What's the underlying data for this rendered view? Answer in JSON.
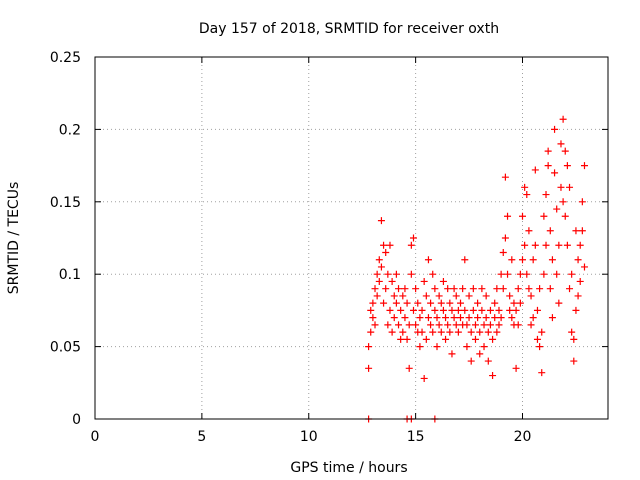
{
  "chart_data": {
    "type": "scatter",
    "title": "Day 157 of 2018, SRMTID for receiver oxth",
    "xlabel": "GPS time / hours",
    "ylabel": "SRMTID / TECUs",
    "xlim": [
      0,
      24
    ],
    "ylim": [
      0,
      0.25
    ],
    "xticks": [
      0,
      5,
      10,
      15,
      20
    ],
    "xtick_labels": [
      "0",
      "5",
      "10",
      "15",
      "20"
    ],
    "yticks": [
      0,
      0.05,
      0.1,
      0.15,
      0.2,
      0.25
    ],
    "ytick_labels": [
      "0",
      "0.05",
      "0.1",
      "0.15",
      "0.2",
      "0.25"
    ],
    "grid": true,
    "legend": "none",
    "marker": "plus",
    "color": "#ff0000",
    "series": [
      {
        "points": [
          [
            12.8,
            0.0
          ],
          [
            14.6,
            0.0
          ],
          [
            14.8,
            0.0
          ],
          [
            15.9,
            0.0
          ],
          [
            12.8,
            0.035
          ],
          [
            12.8,
            0.05
          ],
          [
            12.9,
            0.06
          ],
          [
            12.9,
            0.075
          ],
          [
            13.0,
            0.08
          ],
          [
            13.0,
            0.07
          ],
          [
            13.1,
            0.09
          ],
          [
            13.1,
            0.065
          ],
          [
            13.2,
            0.1
          ],
          [
            13.2,
            0.085
          ],
          [
            13.3,
            0.11
          ],
          [
            13.3,
            0.095
          ],
          [
            13.4,
            0.105
          ],
          [
            13.4,
            0.137
          ],
          [
            13.5,
            0.12
          ],
          [
            13.5,
            0.08
          ],
          [
            13.6,
            0.115
          ],
          [
            13.6,
            0.09
          ],
          [
            13.7,
            0.1
          ],
          [
            13.7,
            0.065
          ],
          [
            13.8,
            0.075
          ],
          [
            13.8,
            0.12
          ],
          [
            13.9,
            0.06
          ],
          [
            13.9,
            0.095
          ],
          [
            14.0,
            0.085
          ],
          [
            14.0,
            0.07
          ],
          [
            14.1,
            0.08
          ],
          [
            14.1,
            0.1
          ],
          [
            14.2,
            0.09
          ],
          [
            14.2,
            0.065
          ],
          [
            14.3,
            0.075
          ],
          [
            14.3,
            0.055
          ],
          [
            14.4,
            0.06
          ],
          [
            14.4,
            0.085
          ],
          [
            14.5,
            0.09
          ],
          [
            14.5,
            0.07
          ],
          [
            14.6,
            0.08
          ],
          [
            14.6,
            0.055
          ],
          [
            14.7,
            0.065
          ],
          [
            14.7,
            0.035
          ],
          [
            14.8,
            0.1
          ],
          [
            14.8,
            0.12
          ],
          [
            14.9,
            0.125
          ],
          [
            14.9,
            0.075
          ],
          [
            15.0,
            0.065
          ],
          [
            15.0,
            0.09
          ],
          [
            15.1,
            0.06
          ],
          [
            15.1,
            0.08
          ],
          [
            15.2,
            0.05
          ],
          [
            15.2,
            0.07
          ],
          [
            15.3,
            0.075
          ],
          [
            15.3,
            0.06
          ],
          [
            15.4,
            0.028
          ],
          [
            15.4,
            0.095
          ],
          [
            15.5,
            0.085
          ],
          [
            15.5,
            0.055
          ],
          [
            15.6,
            0.11
          ],
          [
            15.6,
            0.07
          ],
          [
            15.7,
            0.065
          ],
          [
            15.7,
            0.08
          ],
          [
            15.8,
            0.1
          ],
          [
            15.8,
            0.06
          ],
          [
            15.9,
            0.075
          ],
          [
            15.9,
            0.09
          ],
          [
            16.0,
            0.07
          ],
          [
            16.0,
            0.05
          ],
          [
            16.1,
            0.085
          ],
          [
            16.1,
            0.065
          ],
          [
            16.2,
            0.08
          ],
          [
            16.2,
            0.06
          ],
          [
            16.3,
            0.075
          ],
          [
            16.3,
            0.095
          ],
          [
            16.4,
            0.07
          ],
          [
            16.4,
            0.055
          ],
          [
            16.5,
            0.065
          ],
          [
            16.5,
            0.09
          ],
          [
            16.6,
            0.08
          ],
          [
            16.6,
            0.06
          ],
          [
            16.7,
            0.045
          ],
          [
            16.7,
            0.075
          ],
          [
            16.8,
            0.07
          ],
          [
            16.8,
            0.09
          ],
          [
            16.9,
            0.085
          ],
          [
            16.9,
            0.065
          ],
          [
            17.0,
            0.06
          ],
          [
            17.0,
            0.075
          ],
          [
            17.1,
            0.07
          ],
          [
            17.1,
            0.08
          ],
          [
            17.2,
            0.065
          ],
          [
            17.2,
            0.09
          ],
          [
            17.3,
            0.075
          ],
          [
            17.3,
            0.11
          ],
          [
            17.4,
            0.065
          ],
          [
            17.4,
            0.05
          ],
          [
            17.5,
            0.07
          ],
          [
            17.5,
            0.085
          ],
          [
            17.6,
            0.06
          ],
          [
            17.6,
            0.04
          ],
          [
            17.7,
            0.075
          ],
          [
            17.7,
            0.09
          ],
          [
            17.8,
            0.065
          ],
          [
            17.8,
            0.055
          ],
          [
            17.9,
            0.08
          ],
          [
            17.9,
            0.07
          ],
          [
            18.0,
            0.06
          ],
          [
            18.0,
            0.045
          ],
          [
            18.1,
            0.075
          ],
          [
            18.1,
            0.09
          ],
          [
            18.2,
            0.065
          ],
          [
            18.2,
            0.05
          ],
          [
            18.3,
            0.07
          ],
          [
            18.3,
            0.085
          ],
          [
            18.4,
            0.06
          ],
          [
            18.4,
            0.04
          ],
          [
            18.5,
            0.075
          ],
          [
            18.5,
            0.065
          ],
          [
            18.6,
            0.055
          ],
          [
            18.6,
            0.03
          ],
          [
            18.7,
            0.08
          ],
          [
            18.7,
            0.07
          ],
          [
            18.8,
            0.06
          ],
          [
            18.8,
            0.09
          ],
          [
            18.9,
            0.075
          ],
          [
            18.9,
            0.065
          ],
          [
            19.0,
            0.1
          ],
          [
            19.0,
            0.07
          ],
          [
            19.1,
            0.115
          ],
          [
            19.1,
            0.09
          ],
          [
            19.2,
            0.125
          ],
          [
            19.2,
            0.167
          ],
          [
            19.3,
            0.14
          ],
          [
            19.3,
            0.1
          ],
          [
            19.4,
            0.085
          ],
          [
            19.4,
            0.075
          ],
          [
            19.5,
            0.11
          ],
          [
            19.5,
            0.07
          ],
          [
            19.6,
            0.065
          ],
          [
            19.6,
            0.08
          ],
          [
            19.7,
            0.035
          ],
          [
            19.7,
            0.075
          ],
          [
            19.8,
            0.09
          ],
          [
            19.8,
            0.065
          ],
          [
            19.9,
            0.1
          ],
          [
            19.9,
            0.08
          ],
          [
            20.0,
            0.11
          ],
          [
            20.0,
            0.14
          ],
          [
            20.1,
            0.16
          ],
          [
            20.1,
            0.12
          ],
          [
            20.2,
            0.155
          ],
          [
            20.2,
            0.1
          ],
          [
            20.3,
            0.13
          ],
          [
            20.3,
            0.09
          ],
          [
            20.4,
            0.085
          ],
          [
            20.4,
            0.065
          ],
          [
            20.5,
            0.07
          ],
          [
            20.5,
            0.11
          ],
          [
            20.6,
            0.172
          ],
          [
            20.6,
            0.12
          ],
          [
            20.7,
            0.075
          ],
          [
            20.7,
            0.055
          ],
          [
            20.8,
            0.05
          ],
          [
            20.8,
            0.09
          ],
          [
            20.9,
            0.06
          ],
          [
            20.9,
            0.032
          ],
          [
            21.0,
            0.1
          ],
          [
            21.0,
            0.14
          ],
          [
            21.1,
            0.155
          ],
          [
            21.1,
            0.12
          ],
          [
            21.2,
            0.185
          ],
          [
            21.2,
            0.175
          ],
          [
            21.3,
            0.13
          ],
          [
            21.3,
            0.09
          ],
          [
            21.4,
            0.11
          ],
          [
            21.4,
            0.07
          ],
          [
            21.5,
            0.2
          ],
          [
            21.5,
            0.17
          ],
          [
            21.6,
            0.145
          ],
          [
            21.6,
            0.1
          ],
          [
            21.7,
            0.12
          ],
          [
            21.7,
            0.08
          ],
          [
            21.8,
            0.16
          ],
          [
            21.8,
            0.19
          ],
          [
            21.9,
            0.207
          ],
          [
            21.9,
            0.15
          ],
          [
            22.0,
            0.185
          ],
          [
            22.0,
            0.14
          ],
          [
            22.1,
            0.175
          ],
          [
            22.1,
            0.12
          ],
          [
            22.2,
            0.16
          ],
          [
            22.2,
            0.09
          ],
          [
            22.3,
            0.1
          ],
          [
            22.3,
            0.06
          ],
          [
            22.4,
            0.04
          ],
          [
            22.4,
            0.055
          ],
          [
            22.5,
            0.075
          ],
          [
            22.5,
            0.13
          ],
          [
            22.6,
            0.11
          ],
          [
            22.6,
            0.085
          ],
          [
            22.7,
            0.095
          ],
          [
            22.7,
            0.12
          ],
          [
            22.8,
            0.13
          ],
          [
            22.8,
            0.15
          ],
          [
            22.9,
            0.175
          ],
          [
            22.9,
            0.105
          ]
        ]
      }
    ]
  }
}
